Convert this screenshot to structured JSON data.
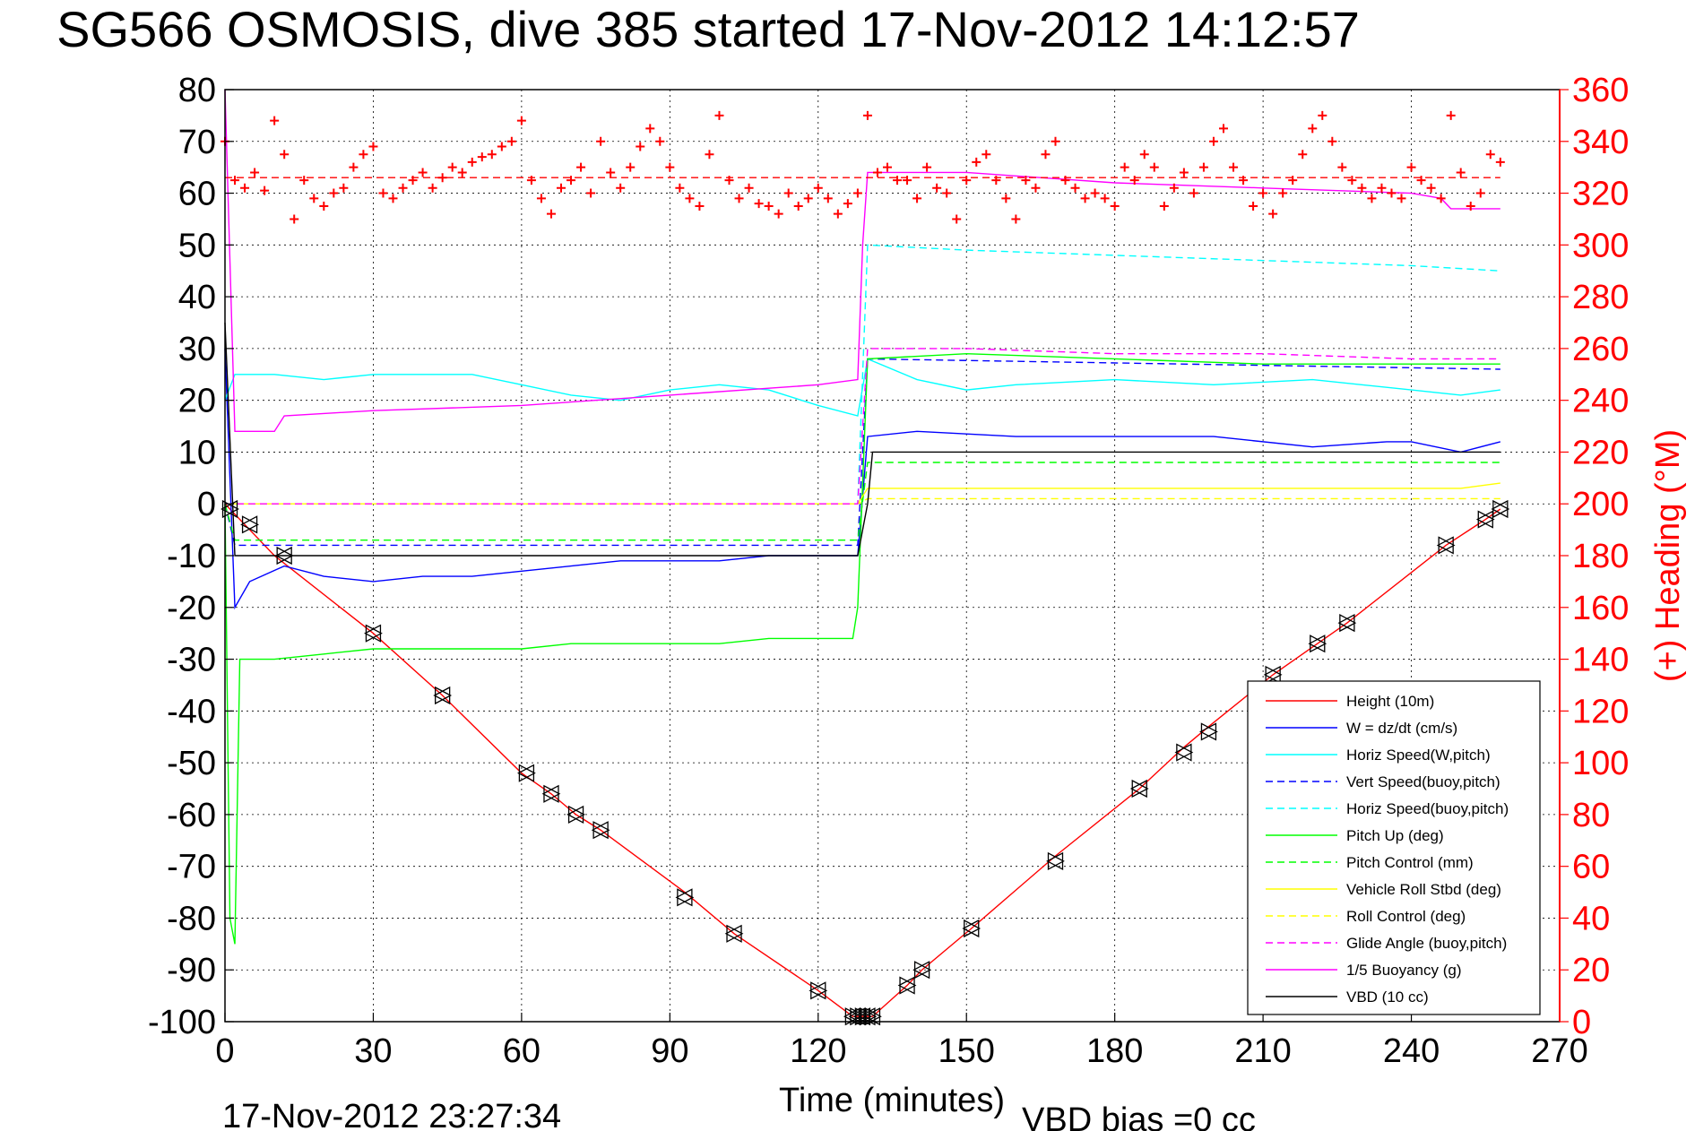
{
  "title": "SG566 OSMOSIS, dive 385 started 17-Nov-2012 14:12:57",
  "footer": {
    "timestamp": "17-Nov-2012 23:27:34",
    "vbd_bias": "VBD bias =0 cc"
  },
  "chart_data": {
    "type": "line",
    "xlabel": "Time (minutes)",
    "ylabel": "",
    "y2label": "(+) Heading (°M)",
    "xlim": [
      0,
      270
    ],
    "ylim": [
      -100,
      80
    ],
    "y2lim": [
      0,
      360
    ],
    "xticks": [
      0,
      30,
      60,
      90,
      120,
      150,
      180,
      210,
      240,
      270
    ],
    "yticks": [
      -100,
      -90,
      -80,
      -70,
      -60,
      -50,
      -40,
      -30,
      -20,
      -10,
      0,
      10,
      20,
      30,
      40,
      50,
      60,
      70,
      80
    ],
    "y2ticks": [
      0,
      20,
      40,
      60,
      80,
      100,
      120,
      140,
      160,
      180,
      200,
      220,
      240,
      260,
      280,
      300,
      320,
      340,
      360
    ],
    "grid": true,
    "legend_position": "bottom-right",
    "colors": {
      "red": "#ff0000",
      "blue": "#0000ff",
      "cyan": "#00ffff",
      "green": "#00ff00",
      "yellow": "#ffff00",
      "magenta": "#ff00ff",
      "black": "#000000"
    },
    "series": [
      {
        "name": "Height (10m)",
        "color": "#ff0000",
        "dash": false,
        "x": [
          0,
          10,
          30,
          44,
          60,
          66,
          71,
          76,
          93,
          103,
          120,
          127,
          129,
          131,
          138,
          141,
          151,
          168,
          185,
          194,
          199,
          212,
          221,
          227,
          247,
          255,
          258
        ],
        "y": [
          0,
          -10,
          -25,
          -37,
          -52,
          -56,
          -60,
          -63,
          -75,
          -83,
          -94,
          -99,
          -99,
          -99,
          -93,
          -90,
          -82,
          -68,
          -55,
          -47,
          -43,
          -33,
          -27,
          -23,
          -8,
          -3,
          -1
        ]
      },
      {
        "name": "W = dz/dt (cm/s)",
        "color": "#0000ff",
        "dash": false,
        "x": [
          0,
          2,
          5,
          12,
          20,
          30,
          40,
          50,
          60,
          70,
          80,
          90,
          100,
          110,
          120,
          128,
          130,
          140,
          160,
          180,
          200,
          220,
          235,
          240,
          250,
          258
        ],
        "y": [
          30,
          -20,
          -15,
          -12,
          -14,
          -15,
          -14,
          -14,
          -13,
          -12,
          -11,
          -11,
          -11,
          -10,
          -10,
          -10,
          13,
          14,
          13,
          13,
          13,
          11,
          12,
          12,
          10,
          12
        ]
      },
      {
        "name": "Horiz Speed(W,pitch)",
        "color": "#00ffff",
        "dash": false,
        "x": [
          0,
          2,
          5,
          10,
          20,
          30,
          40,
          50,
          60,
          70,
          80,
          90,
          100,
          110,
          120,
          128,
          130,
          140,
          150,
          160,
          180,
          200,
          220,
          240,
          250,
          258
        ],
        "y": [
          20,
          25,
          25,
          25,
          24,
          25,
          25,
          25,
          23,
          21,
          20,
          22,
          23,
          22,
          19,
          17,
          28,
          24,
          22,
          23,
          24,
          23,
          24,
          22,
          21,
          22
        ]
      },
      {
        "name": "Vert Speed(buoy,pitch)",
        "color": "#0000ff",
        "dash": true,
        "x": [
          0,
          2,
          128,
          130,
          258
        ],
        "y": [
          0,
          -8,
          -8,
          28,
          26
        ]
      },
      {
        "name": "Horiz Speed(buoy,pitch)",
        "color": "#00ffff",
        "dash": true,
        "x": [
          0,
          2,
          128,
          130,
          150,
          180,
          210,
          240,
          258
        ],
        "y": [
          0,
          0,
          0,
          50,
          49,
          48,
          47,
          46,
          45
        ]
      },
      {
        "name": "Pitch Up (deg)",
        "color": "#00ff00",
        "dash": false,
        "x": [
          0,
          1,
          2,
          3,
          5,
          10,
          20,
          30,
          40,
          50,
          60,
          70,
          80,
          90,
          100,
          110,
          120,
          127,
          128,
          130,
          150,
          180,
          210,
          240,
          258
        ],
        "y": [
          0,
          -80,
          -85,
          -30,
          -30,
          -30,
          -29,
          -28,
          -28,
          -28,
          -28,
          -27,
          -27,
          -27,
          -27,
          -26,
          -26,
          -26,
          -20,
          28,
          29,
          28,
          27,
          27,
          27
        ]
      },
      {
        "name": "Pitch Control (mm)",
        "color": "#00ff00",
        "dash": true,
        "x": [
          0,
          2,
          128,
          130,
          258
        ],
        "y": [
          0,
          -7,
          -7,
          8,
          8
        ]
      },
      {
        "name": "Vehicle Roll Stbd (deg)",
        "color": "#ffff00",
        "dash": false,
        "x": [
          0,
          2,
          10,
          30,
          60,
          90,
          120,
          128,
          130,
          160,
          190,
          220,
          250,
          258
        ],
        "y": [
          0,
          0,
          0,
          0,
          0,
          0,
          0,
          0,
          3,
          3,
          3,
          3,
          3,
          4
        ]
      },
      {
        "name": "Roll Control (deg)",
        "color": "#ffff00",
        "dash": true,
        "x": [
          0,
          128,
          130,
          258
        ],
        "y": [
          0,
          0,
          1,
          1
        ]
      },
      {
        "name": "Glide Angle (buoy,pitch)",
        "color": "#ff00ff",
        "dash": true,
        "x": [
          0,
          2,
          128,
          130,
          150,
          180,
          210,
          240,
          258
        ],
        "y": [
          0,
          0,
          0,
          30,
          30,
          29,
          29,
          28,
          28
        ]
      },
      {
        "name": "1/5 Buoyancy (g)",
        "color": "#ff00ff",
        "dash": false,
        "x": [
          0,
          2,
          10,
          12,
          30,
          60,
          90,
          120,
          128,
          129,
          130,
          150,
          180,
          210,
          240,
          246,
          248,
          258
        ],
        "y": [
          80,
          14,
          14,
          17,
          18,
          19,
          21,
          23,
          24,
          50,
          64,
          64,
          62,
          61,
          60,
          59,
          57,
          57
        ]
      },
      {
        "name": "VBD (10 cc)",
        "color": "#000000",
        "dash": false,
        "x": [
          0,
          2,
          128,
          130,
          131,
          258
        ],
        "y": [
          35,
          -10,
          -10,
          0,
          10,
          10
        ]
      }
    ],
    "heading": {
      "name": "Heading",
      "color": "#ff0000",
      "axis": "right",
      "mean": 326,
      "x": [
        0,
        2,
        4,
        6,
        8,
        10,
        12,
        14,
        16,
        18,
        20,
        22,
        24,
        26,
        28,
        30,
        32,
        34,
        36,
        38,
        40,
        42,
        44,
        46,
        48,
        50,
        52,
        54,
        56,
        58,
        60,
        62,
        64,
        66,
        68,
        70,
        72,
        74,
        76,
        78,
        80,
        82,
        84,
        86,
        88,
        90,
        92,
        94,
        96,
        98,
        100,
        102,
        104,
        106,
        108,
        110,
        112,
        114,
        116,
        118,
        120,
        122,
        124,
        126,
        128,
        130,
        132,
        134,
        136,
        138,
        140,
        142,
        144,
        146,
        148,
        150,
        152,
        154,
        156,
        158,
        160,
        162,
        164,
        166,
        168,
        170,
        172,
        174,
        176,
        178,
        180,
        182,
        184,
        186,
        188,
        190,
        192,
        194,
        196,
        198,
        200,
        202,
        204,
        206,
        208,
        210,
        212,
        214,
        216,
        218,
        220,
        222,
        224,
        226,
        228,
        230,
        232,
        234,
        236,
        238,
        240,
        242,
        244,
        246,
        248,
        250,
        252,
        254,
        256,
        258
      ],
      "y": [
        340,
        325,
        322,
        328,
        321,
        348,
        335,
        310,
        325,
        318,
        315,
        320,
        322,
        330,
        335,
        338,
        320,
        318,
        322,
        325,
        328,
        322,
        326,
        330,
        328,
        332,
        334,
        335,
        338,
        340,
        348,
        325,
        318,
        312,
        322,
        325,
        330,
        320,
        340,
        328,
        322,
        330,
        338,
        345,
        340,
        330,
        322,
        318,
        315,
        335,
        350,
        325,
        318,
        322,
        316,
        315,
        312,
        320,
        315,
        318,
        322,
        318,
        312,
        316,
        320,
        350,
        328,
        330,
        325,
        325,
        318,
        330,
        322,
        320,
        310,
        325,
        332,
        335,
        325,
        318,
        310,
        325,
        322,
        335,
        340,
        325,
        322,
        318,
        320,
        318,
        315,
        330,
        325,
        335,
        330,
        315,
        322,
        328,
        320,
        330,
        340,
        345,
        330,
        325,
        315,
        320,
        312,
        320,
        325,
        335,
        345,
        350,
        340,
        330,
        325,
        322,
        318,
        322,
        320,
        318,
        330,
        325,
        322,
        318,
        350,
        328,
        315,
        320,
        335,
        332
      ]
    },
    "markers": {
      "symbol": "triangles",
      "color": "#000000",
      "x": [
        1,
        5,
        12,
        30,
        44,
        61,
        66,
        71,
        76,
        93,
        103,
        120,
        127,
        128,
        129,
        130,
        131,
        138,
        141,
        151,
        168,
        185,
        194,
        199,
        212,
        221,
        227,
        247,
        255,
        258
      ],
      "y": [
        -1,
        -4,
        -10,
        -25,
        -37,
        -52,
        -56,
        -60,
        -63,
        -76,
        -83,
        -94,
        -99,
        -99,
        -99,
        -99,
        -99,
        -93,
        -90,
        -82,
        -69,
        -55,
        -48,
        -44,
        -33,
        -27,
        -23,
        -8,
        -3,
        -1
      ]
    }
  }
}
